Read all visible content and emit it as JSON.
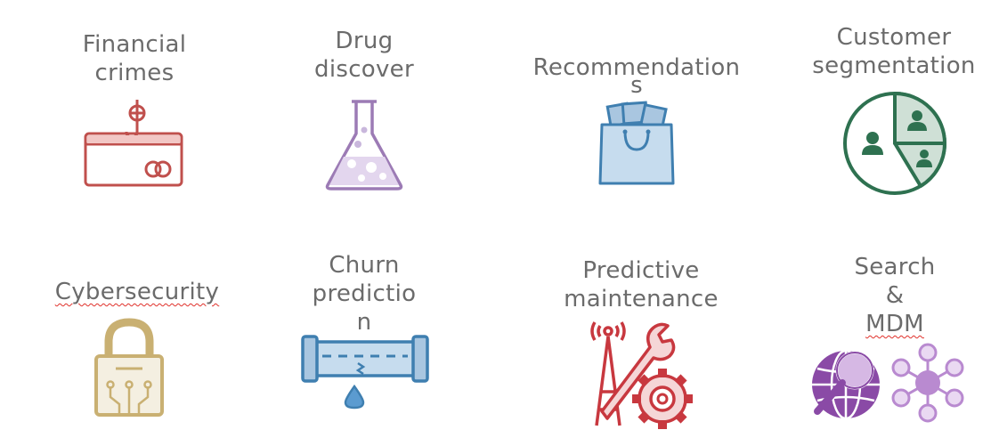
{
  "tiles": [
    {
      "label_lines": [
        "Financial",
        "crimes"
      ],
      "icon": "credit-card-phishing-icon",
      "color": "#c0504d"
    },
    {
      "label_lines": [
        "Drug",
        "discover"
      ],
      "icon": "flask-icon",
      "color": "#9c7bb5"
    },
    {
      "label_lines": [
        "Recommendation",
        "s"
      ],
      "icon": "shopping-bag-icon",
      "color": "#3f7fb0"
    },
    {
      "label_lines": [
        "Customer",
        "segmentation"
      ],
      "icon": "pie-segments-icon",
      "color": "#2e7150"
    },
    {
      "label_lines": [
        "Cybersecurity"
      ],
      "icon": "circuit-lock-icon",
      "color": "#c9b072"
    },
    {
      "label_lines": [
        "Churn",
        "predictio",
        "n"
      ],
      "icon": "leaking-pipe-icon",
      "color": "#3f7fb0"
    },
    {
      "label_lines": [
        "Predictive",
        "maintenance"
      ],
      "icon": "tower-wrench-gear-icon",
      "color": "#c8383f"
    },
    {
      "label_lines": [
        "Search",
        "&",
        "MDM"
      ],
      "icon": "globe-search-network-icon",
      "color": "#8a4aa6"
    }
  ]
}
